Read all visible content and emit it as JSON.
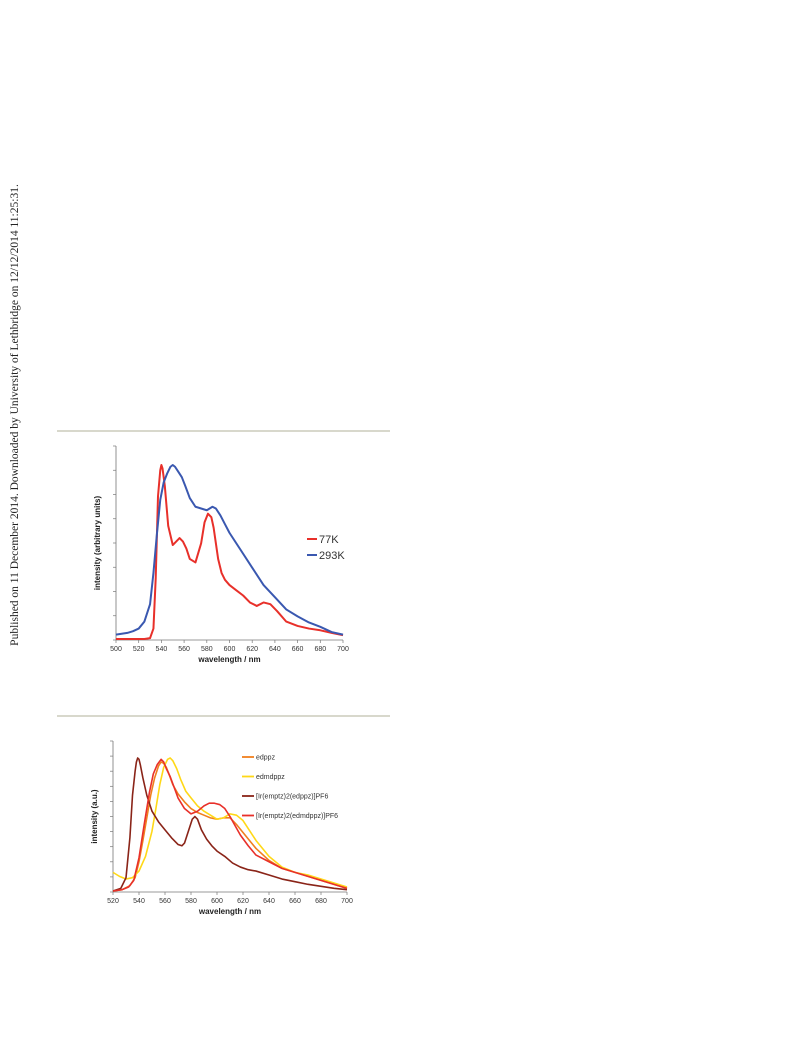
{
  "side_note": "Published on 11 December 2014. Downloaded by University of Lethbridge on 12/12/2014 11:25:31.",
  "chart_data": [
    {
      "type": "line",
      "xlabel": "wavelength / nm",
      "ylabel": "intensity (arbitrary units)",
      "xlim": [
        500,
        700
      ],
      "xticks": [
        "500",
        "520",
        "540",
        "560",
        "580",
        "600",
        "620",
        "640",
        "660",
        "680",
        "700"
      ],
      "ylim": [
        0,
        1
      ],
      "grid": false,
      "legend_position": "right",
      "series": [
        {
          "name": "77K",
          "color": "#e8302a",
          "x": [
            500,
            525,
            530,
            533,
            535,
            537,
            539,
            540,
            541,
            543,
            546,
            550,
            553,
            556,
            559,
            562,
            565,
            570,
            575,
            578,
            581,
            584,
            586,
            588,
            590,
            593,
            596,
            600,
            606,
            612,
            618,
            624,
            630,
            636,
            642,
            650,
            660,
            670,
            680,
            690,
            700
          ],
          "y": [
            0.0,
            0.0,
            0.005,
            0.06,
            0.35,
            0.82,
            0.97,
            1.0,
            0.98,
            0.88,
            0.65,
            0.54,
            0.56,
            0.58,
            0.56,
            0.52,
            0.46,
            0.44,
            0.55,
            0.67,
            0.72,
            0.7,
            0.64,
            0.55,
            0.46,
            0.38,
            0.34,
            0.31,
            0.28,
            0.25,
            0.21,
            0.19,
            0.21,
            0.2,
            0.16,
            0.1,
            0.075,
            0.06,
            0.05,
            0.035,
            0.022
          ]
        },
        {
          "name": "293K",
          "color": "#3a58b0",
          "x": [
            500,
            505,
            510,
            515,
            520,
            525,
            530,
            533,
            536,
            539,
            542,
            545,
            548,
            550,
            552,
            555,
            558,
            561,
            565,
            570,
            575,
            580,
            585,
            588,
            592,
            596,
            600,
            610,
            620,
            630,
            640,
            650,
            660,
            670,
            680,
            690,
            700
          ],
          "y": [
            0.025,
            0.03,
            0.035,
            0.045,
            0.06,
            0.1,
            0.2,
            0.38,
            0.6,
            0.8,
            0.9,
            0.95,
            0.99,
            1.0,
            0.99,
            0.96,
            0.93,
            0.88,
            0.81,
            0.76,
            0.75,
            0.74,
            0.76,
            0.75,
            0.71,
            0.66,
            0.61,
            0.51,
            0.41,
            0.31,
            0.24,
            0.17,
            0.13,
            0.095,
            0.07,
            0.04,
            0.025
          ]
        }
      ]
    },
    {
      "type": "line",
      "xlabel": "wavelength / nm",
      "ylabel": "intensity (a.u.)",
      "xlim": [
        520,
        700
      ],
      "xticks": [
        "520",
        "540",
        "560",
        "580",
        "600",
        "620",
        "640",
        "660",
        "680",
        "700"
      ],
      "ylim": [
        0,
        1
      ],
      "grid": false,
      "legend_position": "top-right",
      "series": [
        {
          "name": "edppz",
          "color": "#f07f1e",
          "x": [
            520,
            527,
            533,
            537,
            540,
            543,
            546,
            549,
            552,
            555,
            557,
            559,
            561,
            563,
            566,
            570,
            575,
            580,
            585,
            590,
            595,
            600,
            605,
            610,
            615,
            620,
            630,
            640,
            650,
            660,
            670,
            680,
            690,
            700
          ],
          "y": [
            0.0,
            0.01,
            0.04,
            0.1,
            0.22,
            0.38,
            0.55,
            0.72,
            0.85,
            0.94,
            0.97,
            0.96,
            0.93,
            0.88,
            0.8,
            0.73,
            0.67,
            0.62,
            0.59,
            0.57,
            0.55,
            0.54,
            0.55,
            0.55,
            0.5,
            0.44,
            0.32,
            0.23,
            0.17,
            0.14,
            0.11,
            0.08,
            0.05,
            0.02
          ]
        },
        {
          "name": "edmdppz",
          "color": "#ffd817",
          "x": [
            520,
            525,
            530,
            535,
            540,
            545,
            550,
            553,
            556,
            559,
            562,
            564,
            566,
            569,
            572,
            576,
            580,
            585,
            590,
            595,
            600,
            605,
            610,
            615,
            620,
            630,
            640,
            650,
            660,
            670,
            680,
            690,
            700
          ],
          "y": [
            0.14,
            0.11,
            0.09,
            0.1,
            0.15,
            0.26,
            0.45,
            0.62,
            0.8,
            0.93,
            0.99,
            1.0,
            0.98,
            0.92,
            0.84,
            0.75,
            0.7,
            0.64,
            0.6,
            0.57,
            0.54,
            0.55,
            0.58,
            0.57,
            0.53,
            0.38,
            0.26,
            0.18,
            0.14,
            0.12,
            0.09,
            0.06,
            0.03
          ]
        },
        {
          "name": "[Ir(emptz)2(edppz)]PF6",
          "color": "#8a2418",
          "x": [
            520,
            526,
            530,
            533,
            535,
            537,
            538,
            539,
            540,
            541,
            543,
            546,
            550,
            555,
            560,
            565,
            570,
            573,
            575,
            578,
            581,
            583,
            585,
            588,
            592,
            596,
            600,
            606,
            612,
            618,
            624,
            630,
            640,
            650,
            660,
            670,
            680,
            690,
            700
          ],
          "y": [
            0.0,
            0.02,
            0.1,
            0.4,
            0.72,
            0.9,
            0.97,
            1.0,
            0.99,
            0.95,
            0.85,
            0.72,
            0.6,
            0.52,
            0.46,
            0.4,
            0.35,
            0.34,
            0.36,
            0.45,
            0.54,
            0.56,
            0.54,
            0.46,
            0.39,
            0.34,
            0.3,
            0.26,
            0.21,
            0.18,
            0.16,
            0.15,
            0.12,
            0.09,
            0.07,
            0.05,
            0.035,
            0.02,
            0.01
          ]
        },
        {
          "name": "[Ir(emptz)2(edmdppz)]PF6",
          "color": "#e8302a",
          "x": [
            520,
            527,
            532,
            536,
            540,
            544,
            548,
            551,
            554,
            557,
            559,
            561,
            564,
            567,
            570,
            575,
            580,
            585,
            590,
            594,
            598,
            602,
            606,
            610,
            614,
            618,
            624,
            630,
            640,
            650,
            660,
            670,
            680,
            690,
            700
          ],
          "y": [
            0.0,
            0.01,
            0.03,
            0.08,
            0.25,
            0.5,
            0.74,
            0.88,
            0.95,
            0.99,
            0.97,
            0.92,
            0.86,
            0.78,
            0.7,
            0.62,
            0.58,
            0.6,
            0.64,
            0.66,
            0.66,
            0.65,
            0.62,
            0.56,
            0.49,
            0.42,
            0.34,
            0.27,
            0.22,
            0.17,
            0.14,
            0.11,
            0.08,
            0.05,
            0.02
          ]
        }
      ]
    }
  ]
}
